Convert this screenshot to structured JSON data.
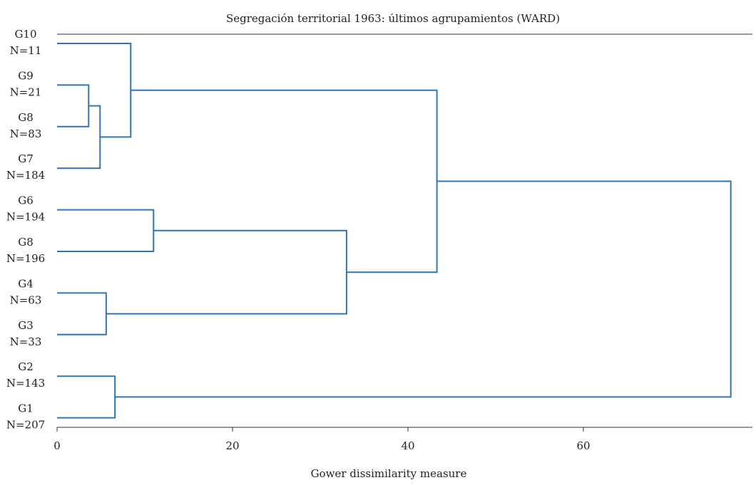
{
  "chart_data": {
    "type": "dendrogram",
    "title": "Segregación territorial 1963: últimos agrupamientos (WARD)",
    "xlabel": "Gower dissimilarity measure",
    "xlim": [
      0,
      77
    ],
    "x_ticks": [
      0,
      20,
      40,
      60
    ],
    "color": "#2e75b6",
    "leaves": [
      {
        "group": "G10",
        "n": "N=11"
      },
      {
        "group": "G9",
        "n": "N=21"
      },
      {
        "group": "G8",
        "n": "N=83"
      },
      {
        "group": "G7",
        "n": "N=184"
      },
      {
        "group": "G6",
        "n": "N=194"
      },
      {
        "group": "G8",
        "n": "N=196"
      },
      {
        "group": "G4",
        "n": "N=63"
      },
      {
        "group": "G3",
        "n": "N=33"
      },
      {
        "group": "G2",
        "n": "N=143"
      },
      {
        "group": "G1",
        "n": "N=207"
      }
    ],
    "merges": [
      {
        "left": "L1",
        "right": "L2",
        "height": 3.6
      },
      {
        "left": "M0",
        "right": "L3",
        "height": 4.9
      },
      {
        "left": "L0",
        "right": "M1",
        "height": 8.4
      },
      {
        "left": "L4",
        "right": "L5",
        "height": 11.0
      },
      {
        "left": "L6",
        "right": "L7",
        "height": 5.6
      },
      {
        "left": "M3",
        "right": "M4",
        "height": 33.0
      },
      {
        "left": "M2",
        "right": "M5",
        "height": 43.3
      },
      {
        "left": "L8",
        "right": "L9",
        "height": 6.6
      },
      {
        "left": "M6",
        "right": "M7",
        "height": 76.8
      }
    ]
  }
}
